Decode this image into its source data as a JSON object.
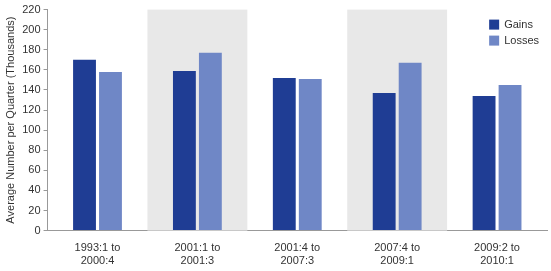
{
  "chart_data": {
    "type": "bar",
    "y_label": "Average Number per Quarter (Thousands)",
    "categories": [
      "1993:1 to 2000:4",
      "2001:1 to 2001:3",
      "2001:4 to 2007:3",
      "2007:4 to 2009:1",
      "2009:2 to 2010:1"
    ],
    "series": [
      {
        "name": "Gains",
        "color": "#1f3d94",
        "values": [
          170,
          159,
          152,
          137,
          134
        ]
      },
      {
        "name": "Losses",
        "color": "#6f87c6",
        "values": [
          158,
          177,
          151,
          167,
          145
        ]
      }
    ],
    "ylim": [
      0,
      220
    ],
    "yticks": [
      0,
      20,
      40,
      60,
      80,
      100,
      120,
      140,
      160,
      180,
      200,
      220
    ],
    "grid": false,
    "legend": "upper right"
  }
}
